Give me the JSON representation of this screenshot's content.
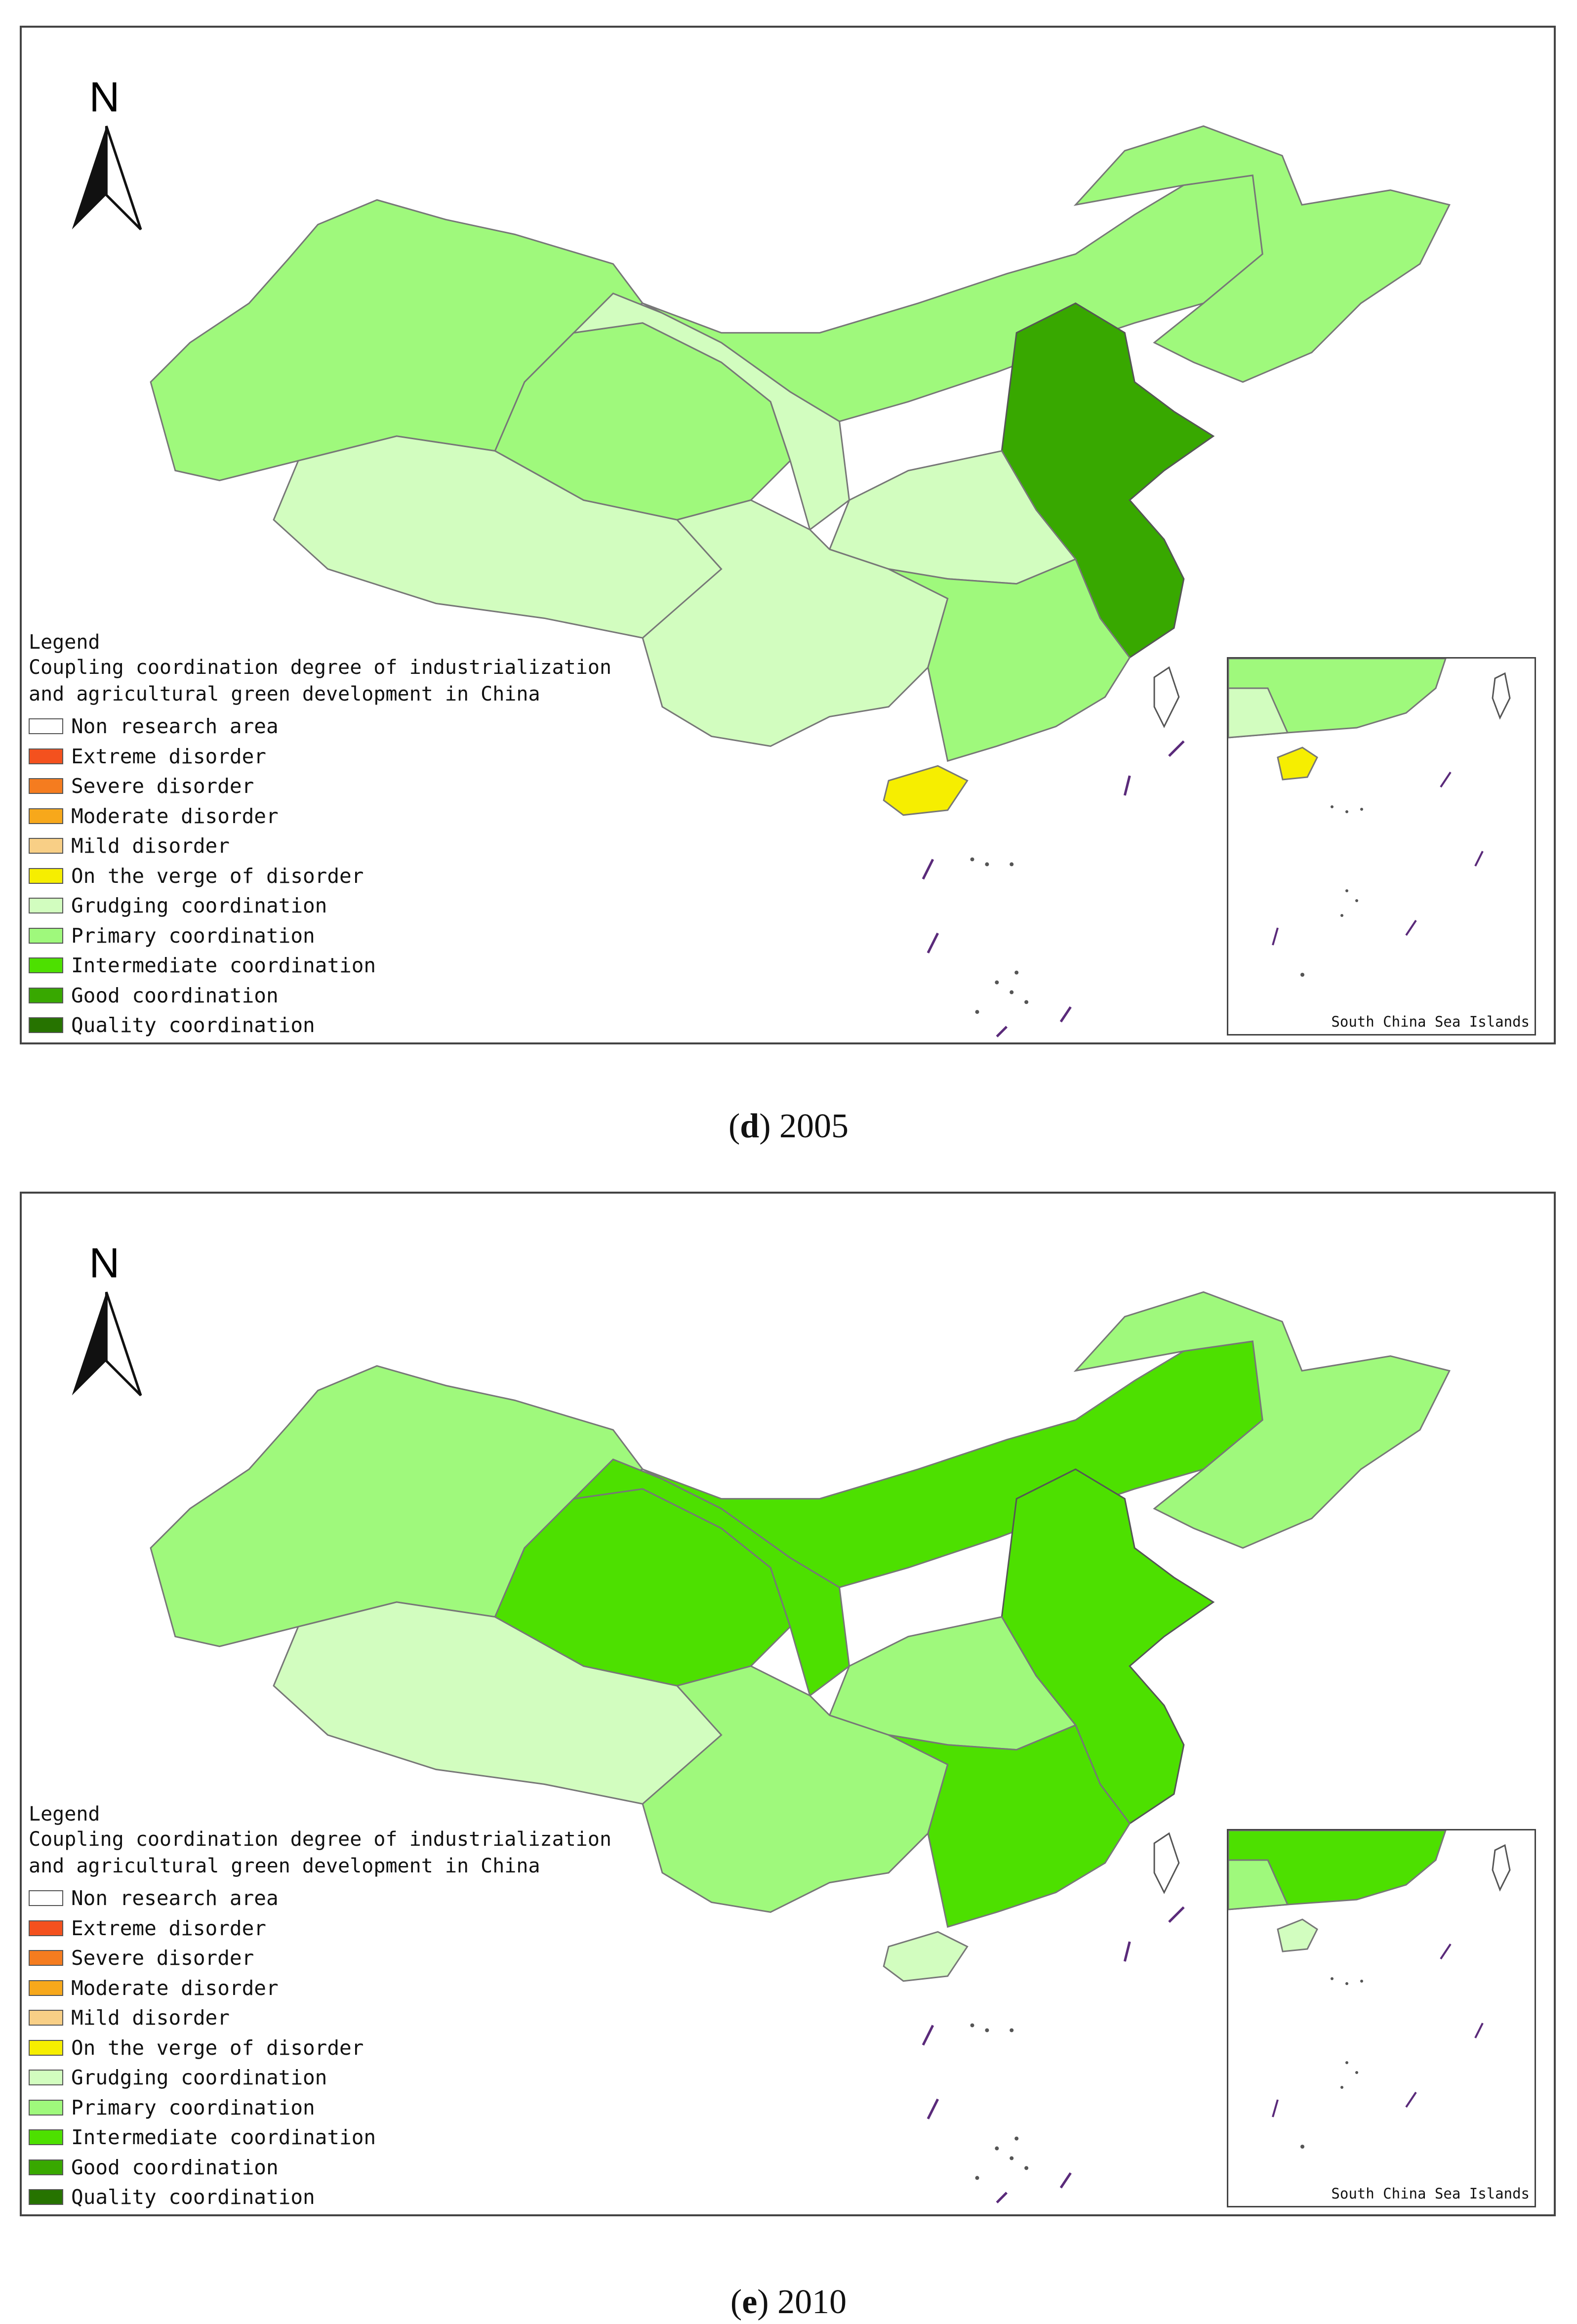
{
  "panels": [
    {
      "caption_letter": "d",
      "caption_year": "2005",
      "north_label": "N",
      "legend": {
        "heading": "Legend",
        "title_line1": "Coupling coordination degree of industrialization",
        "title_line2": "and agricultural green development in China"
      },
      "inset_label": "South China Sea Islands",
      "region_classes": {
        "xinjiang": "Primary coordination",
        "tibet": "Grudging coordination",
        "qinghai": "Primary coordination",
        "gansu": "Grudging coordination",
        "inner_mongolia": "Primary coordination",
        "northeast": "Primary coordination",
        "north_coast": "Good coordination",
        "central": "Grudging coordination",
        "southwest": "Grudging coordination",
        "south": "Primary coordination",
        "hainan": "On the verge of disorder"
      }
    },
    {
      "caption_letter": "e",
      "caption_year": "2010",
      "north_label": "N",
      "legend": {
        "heading": "Legend",
        "title_line1": "Coupling coordination degree of industrialization",
        "title_line2": "and agricultural green development in China"
      },
      "inset_label": "South China Sea Islands",
      "region_classes": {
        "xinjiang": "Primary coordination",
        "tibet": "Grudging coordination",
        "qinghai": "Intermediate coordination",
        "gansu": "Intermediate coordination",
        "inner_mongolia": "Intermediate coordination",
        "northeast": "Primary coordination",
        "north_coast": "Intermediate coordination",
        "central": "Primary coordination",
        "southwest": "Primary coordination",
        "south": "Intermediate coordination",
        "hainan": "Grudging coordination"
      }
    }
  ],
  "legend_items": [
    {
      "label": "Non research area",
      "color": "#ffffff"
    },
    {
      "label": "Extreme disorder",
      "color": "#f4511e"
    },
    {
      "label": "Severe disorder",
      "color": "#f57c1f"
    },
    {
      "label": "Moderate disorder",
      "color": "#f7a81b"
    },
    {
      "label": "Mild disorder",
      "color": "#f8cf86"
    },
    {
      "label": "On the verge of disorder",
      "color": "#f6ee00"
    },
    {
      "label": "Grudging coordination",
      "color": "#d2fdbf"
    },
    {
      "label": "Primary coordination",
      "color": "#9ff97c"
    },
    {
      "label": "Intermediate coordination",
      "color": "#4de000"
    },
    {
      "label": "Good coordination",
      "color": "#38a800"
    },
    {
      "label": "Quality coordination",
      "color": "#267300"
    }
  ]
}
